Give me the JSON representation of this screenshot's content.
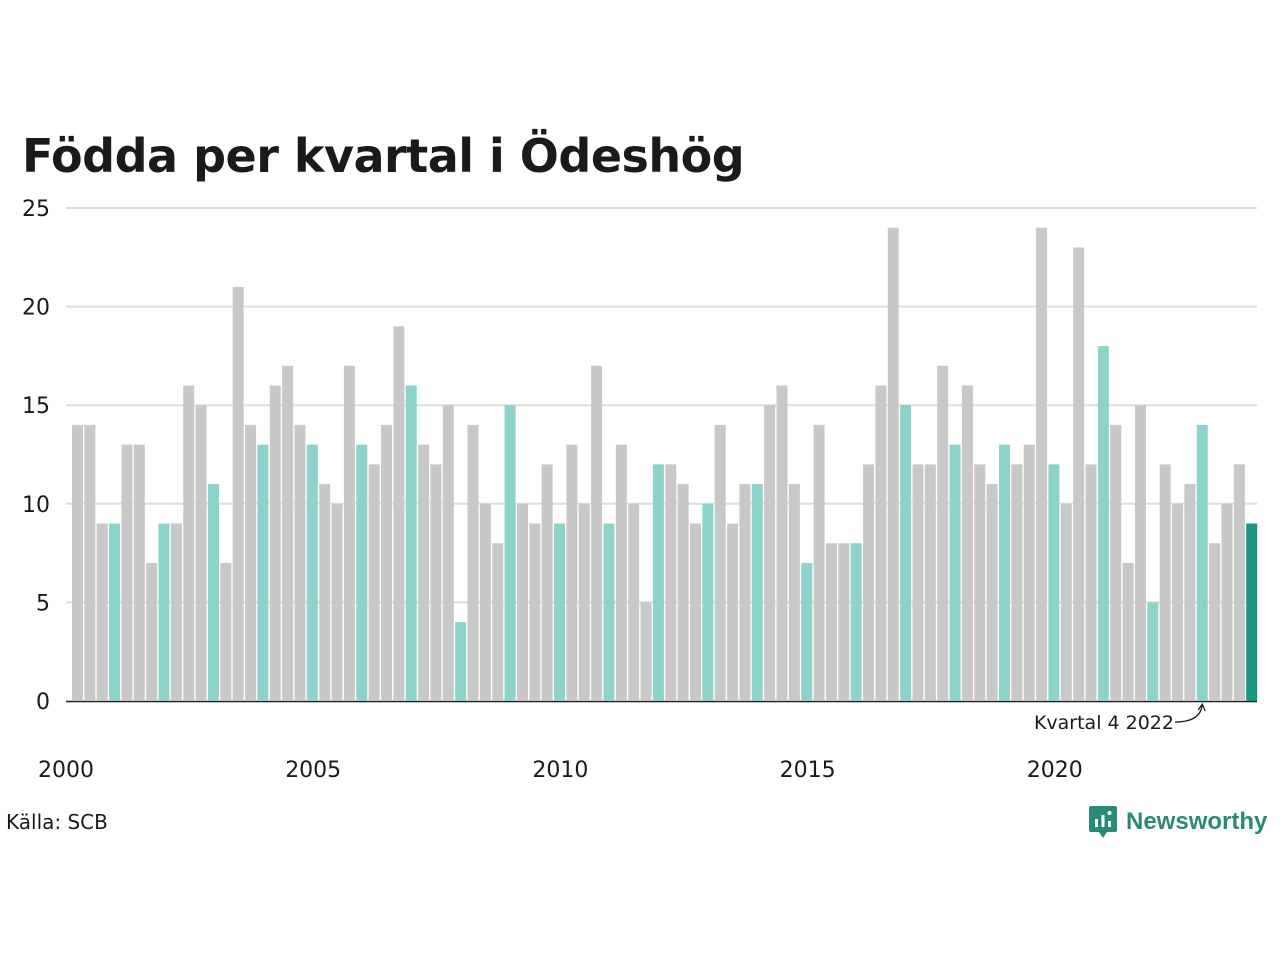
{
  "title": "Födda per kvartal i Ödeshög",
  "source": "Källa: SCB",
  "logo_text": "Newsworthy",
  "colors": {
    "bar_default": "#c8c8c8",
    "bar_q4": "#8dd3cb",
    "bar_highlight": "#1a9682",
    "gridline": "#dddddd",
    "axis": "#1a1a1a",
    "logo": "#2a8a78"
  },
  "icons": {
    "logo": "chat-bubble-bar-chart-icon",
    "annotation": "curved-arrow-icon"
  },
  "chart_data": {
    "type": "bar",
    "title": "Födda per kvartal i Ödeshög",
    "xlabel": "",
    "ylabel": "",
    "ylim": [
      0,
      25
    ],
    "yticks": [
      "0",
      "5",
      "10",
      "15",
      "20",
      "25"
    ],
    "xticks": [
      "2000",
      "2005",
      "2010",
      "2015",
      "2020"
    ],
    "grid": true,
    "categories": [
      "2000 K1",
      "2000 K2",
      "2000 K3",
      "2000 K4",
      "2001 K1",
      "2001 K2",
      "2001 K3",
      "2001 K4",
      "2002 K1",
      "2002 K2",
      "2002 K3",
      "2002 K4",
      "2003 K1",
      "2003 K2",
      "2003 K3",
      "2003 K4",
      "2004 K1",
      "2004 K2",
      "2004 K3",
      "2004 K4",
      "2005 K1",
      "2005 K2",
      "2005 K3",
      "2005 K4",
      "2006 K1",
      "2006 K2",
      "2006 K3",
      "2006 K4",
      "2007 K1",
      "2007 K2",
      "2007 K3",
      "2007 K4",
      "2008 K1",
      "2008 K2",
      "2008 K3",
      "2008 K4",
      "2009 K1",
      "2009 K2",
      "2009 K3",
      "2009 K4",
      "2010 K1",
      "2010 K2",
      "2010 K3",
      "2010 K4",
      "2011 K1",
      "2011 K2",
      "2011 K3",
      "2011 K4",
      "2012 K1",
      "2012 K2",
      "2012 K3",
      "2012 K4",
      "2013 K1",
      "2013 K2",
      "2013 K3",
      "2013 K4",
      "2014 K1",
      "2014 K2",
      "2014 K3",
      "2014 K4",
      "2015 K1",
      "2015 K2",
      "2015 K3",
      "2015 K4",
      "2016 K1",
      "2016 K2",
      "2016 K3",
      "2016 K4",
      "2017 K1",
      "2017 K2",
      "2017 K3",
      "2017 K4",
      "2018 K1",
      "2018 K2",
      "2018 K3",
      "2018 K4",
      "2019 K1",
      "2019 K2",
      "2019 K3",
      "2019 K4",
      "2020 K1",
      "2020 K2",
      "2020 K3",
      "2020 K4",
      "2021 K1",
      "2021 K2",
      "2021 K3",
      "2021 K4",
      "2022 K1",
      "2022 K2",
      "2022 K3",
      "2022 K4",
      "2023 K1",
      "2023 K2",
      "2023 K3",
      "2023 K4"
    ],
    "values": [
      14,
      14,
      9,
      9,
      13,
      13,
      7,
      9,
      9,
      16,
      15,
      11,
      7,
      21,
      14,
      13,
      16,
      17,
      14,
      13,
      11,
      10,
      17,
      13,
      12,
      14,
      19,
      16,
      13,
      12,
      15,
      4,
      14,
      10,
      8,
      15,
      10,
      9,
      12,
      9,
      13,
      10,
      17,
      9,
      13,
      10,
      5,
      12,
      12,
      11,
      9,
      10,
      14,
      9,
      11,
      11,
      15,
      16,
      11,
      7,
      14,
      8,
      8,
      8,
      12,
      16,
      24,
      15,
      12,
      12,
      17,
      13,
      16,
      12,
      11,
      13,
      12,
      13,
      24,
      12,
      10,
      23,
      12,
      18,
      14,
      7,
      15,
      5,
      12,
      10,
      11,
      14,
      8,
      10,
      12,
      9
    ],
    "highlight_index": 95,
    "annotation": {
      "text": "Kvartal 4 2022",
      "target_index": 91
    }
  }
}
